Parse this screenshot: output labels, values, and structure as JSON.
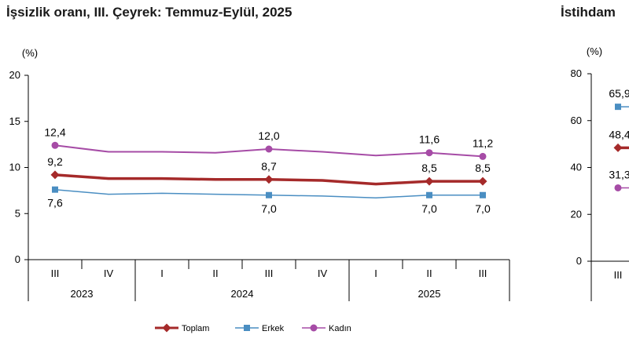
{
  "titles": {
    "left": "İşsizlik oranı, III. Çeyrek: Temmuz-Eylül, 2025",
    "right": "İstihdam"
  },
  "chart_data": [
    {
      "type": "line",
      "title": "İşsizlik oranı, III. Çeyrek: Temmuz-Eylül, 2025",
      "unit": "(%)",
      "ylim": [
        0,
        20
      ],
      "yticks": [
        0,
        5,
        10,
        15,
        20
      ],
      "categories": [
        "III",
        "IV",
        "I",
        "II",
        "III",
        "IV",
        "I",
        "II",
        "III"
      ],
      "years": [
        {
          "label": "2023",
          "span": [
            0,
            1
          ]
        },
        {
          "label": "2024",
          "span": [
            2,
            5
          ]
        },
        {
          "label": "2025",
          "span": [
            6,
            8
          ]
        }
      ],
      "grid": false,
      "legend_position": "bottom",
      "series": [
        {
          "name": "Toplam",
          "color": "#a52a2a",
          "marker": "diamond",
          "values": [
            9.2,
            8.8,
            8.8,
            8.7,
            8.7,
            8.6,
            8.2,
            8.5,
            8.5
          ],
          "labels": {
            "0": "9,2",
            "4": "8,7",
            "7": "8,5",
            "8": "8,5"
          }
        },
        {
          "name": "Erkek",
          "color": "#4a8ec2",
          "marker": "square",
          "values": [
            7.6,
            7.1,
            7.2,
            7.1,
            7.0,
            6.9,
            6.7,
            7.0,
            7.0
          ],
          "labels": {
            "0": "7,6",
            "4": "7,0",
            "7": "7,0",
            "8": "7,0"
          }
        },
        {
          "name": "Kadın",
          "color": "#a64ca6",
          "marker": "circle",
          "values": [
            12.4,
            11.7,
            11.7,
            11.6,
            12.0,
            11.7,
            11.3,
            11.6,
            11.2
          ],
          "labels": {
            "0": "12,4",
            "4": "12,0",
            "7": "11,6",
            "8": "11,2"
          }
        }
      ]
    },
    {
      "type": "line",
      "title": "İstihdam",
      "unit": "(%)",
      "ylim": [
        0,
        80
      ],
      "yticks": [
        0,
        20,
        40,
        60,
        80
      ],
      "categories": [
        "III"
      ],
      "years": [],
      "grid": false,
      "series": [
        {
          "name": "Erkek",
          "color": "#4a8ec2",
          "marker": "square",
          "values": [
            65.9
          ],
          "labels": {
            "0": "65,9"
          }
        },
        {
          "name": "Toplam",
          "color": "#a52a2a",
          "marker": "diamond",
          "values": [
            48.4
          ],
          "labels": {
            "0": "48,4"
          }
        },
        {
          "name": "Kadın",
          "color": "#a64ca6",
          "marker": "circle",
          "values": [
            31.3
          ],
          "labels": {
            "0": "31,3"
          }
        }
      ]
    }
  ]
}
